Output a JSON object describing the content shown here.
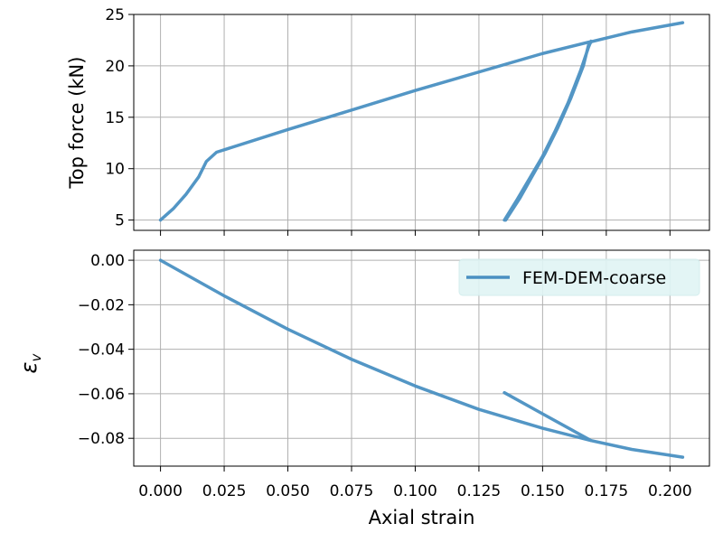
{
  "chart_data": [
    {
      "type": "line",
      "xlabel": "",
      "ylabel": "Top force (kN)",
      "xlim": [
        -0.0105,
        0.2155
      ],
      "ylim": [
        4.0,
        25.0
      ],
      "xticks": [
        0.0,
        0.025,
        0.05,
        0.075,
        0.1,
        0.125,
        0.15,
        0.175,
        0.2
      ],
      "yticks": [
        5,
        10,
        15,
        20,
        25
      ],
      "ytick_labels": [
        "5",
        "10",
        "15",
        "20",
        "25"
      ],
      "grid": true,
      "series": [
        {
          "name": "FEM-DEM-coarse",
          "color": "#4a90c2",
          "points": [
            [
              0.0,
              5.0
            ],
            [
              0.005,
              6.1
            ],
            [
              0.01,
              7.5
            ],
            [
              0.015,
              9.2
            ],
            [
              0.018,
              10.7
            ],
            [
              0.022,
              11.6
            ],
            [
              0.05,
              13.8
            ],
            [
              0.1,
              17.6
            ],
            [
              0.15,
              21.2
            ],
            [
              0.168,
              22.3
            ],
            [
              0.17,
              22.4
            ],
            [
              0.185,
              23.3
            ],
            [
              0.205,
              24.2
            ],
            null,
            [
              0.135,
              5.0
            ],
            [
              0.14,
              7.0
            ],
            [
              0.145,
              9.1
            ],
            [
              0.15,
              11.2
            ],
            [
              0.155,
              13.7
            ],
            [
              0.16,
              16.4
            ],
            [
              0.165,
              19.6
            ],
            [
              0.168,
              21.8
            ],
            [
              0.169,
              22.4
            ],
            null,
            [
              0.1355,
              5.0
            ],
            [
              0.141,
              7.1
            ],
            [
              0.146,
              9.3
            ],
            [
              0.151,
              11.5
            ],
            [
              0.156,
              14.0
            ],
            [
              0.161,
              16.8
            ],
            [
              0.166,
              20.0
            ],
            [
              0.168,
              22.0
            ],
            [
              0.169,
              22.3
            ]
          ]
        }
      ]
    },
    {
      "type": "line",
      "xlabel": "Axial strain",
      "ylabel": "ε_v",
      "xlim": [
        -0.0105,
        0.2155
      ],
      "ylim": [
        -0.0925,
        0.0045
      ],
      "xticks": [
        0.0,
        0.025,
        0.05,
        0.075,
        0.1,
        0.125,
        0.15,
        0.175,
        0.2
      ],
      "xtick_labels": [
        "0.000",
        "0.025",
        "0.050",
        "0.075",
        "0.100",
        "0.125",
        "0.150",
        "0.175",
        "0.200"
      ],
      "yticks": [
        0.0,
        -0.02,
        -0.04,
        -0.06,
        -0.08
      ],
      "ytick_labels": [
        "0.00",
        "−0.02",
        "−0.04",
        "−0.06",
        "−0.08"
      ],
      "grid": true,
      "legend": {
        "position": "top-right",
        "entries": [
          "FEM-DEM-coarse"
        ],
        "background": "#e0f5f5"
      },
      "series": [
        {
          "name": "FEM-DEM-coarse",
          "color": "#4a90c2",
          "points": [
            [
              0.0,
              0.0
            ],
            [
              0.025,
              -0.016
            ],
            [
              0.05,
              -0.031
            ],
            [
              0.075,
              -0.0445
            ],
            [
              0.1,
              -0.0565
            ],
            [
              0.125,
              -0.067
            ],
            [
              0.15,
              -0.0755
            ],
            [
              0.169,
              -0.081
            ],
            [
              0.185,
              -0.085
            ],
            [
              0.205,
              -0.0885
            ],
            null,
            [
              0.135,
              -0.0595
            ],
            [
              0.15,
              -0.069
            ],
            [
              0.169,
              -0.081
            ]
          ]
        }
      ]
    }
  ]
}
